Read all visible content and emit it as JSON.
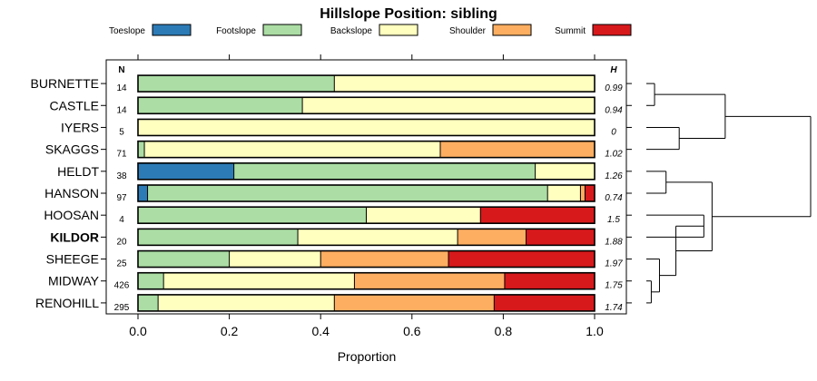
{
  "chart_data": {
    "type": "bar",
    "stacked": true,
    "orientation": "horizontal",
    "title": "Hillslope Position: sibling",
    "xlabel": "Proportion",
    "ylabel": "",
    "xlim": [
      0,
      1
    ],
    "x_ticks": [
      "0.0",
      "0.2",
      "0.4",
      "0.6",
      "0.8",
      "1.0"
    ],
    "legend_position": "top",
    "n_header": "N",
    "h_header": "H",
    "series": [
      {
        "name": "Toeslope",
        "color": "#2C7BB6"
      },
      {
        "name": "Footslope",
        "color": "#ABDDA4"
      },
      {
        "name": "Backslope",
        "color": "#FFFFBF"
      },
      {
        "name": "Shoulder",
        "color": "#FDAE61"
      },
      {
        "name": "Summit",
        "color": "#D7191C"
      }
    ],
    "rows": [
      {
        "label": "BURNETTE",
        "bold": false,
        "n": "14",
        "h": "0.99",
        "values": [
          0,
          0.43,
          0.57,
          0,
          0
        ]
      },
      {
        "label": "CASTLE",
        "bold": false,
        "n": "14",
        "h": "0.94",
        "values": [
          0,
          0.36,
          0.64,
          0,
          0
        ]
      },
      {
        "label": "IYERS",
        "bold": false,
        "n": "5",
        "h": "0",
        "values": [
          0,
          0,
          1.0,
          0,
          0
        ]
      },
      {
        "label": "SKAGGS",
        "bold": false,
        "n": "71",
        "h": "1.02",
        "values": [
          0,
          0.014,
          0.648,
          0.338,
          0
        ]
      },
      {
        "label": "HELDT",
        "bold": false,
        "n": "38",
        "h": "1.26",
        "values": [
          0.21,
          0.66,
          0.13,
          0,
          0
        ]
      },
      {
        "label": "HANSON",
        "bold": false,
        "n": "97",
        "h": "0.74",
        "values": [
          0.021,
          0.876,
          0.072,
          0.01,
          0.021
        ]
      },
      {
        "label": "HOOSAN",
        "bold": false,
        "n": "4",
        "h": "1.5",
        "values": [
          0,
          0.5,
          0.25,
          0,
          0.25
        ]
      },
      {
        "label": "KILDOR",
        "bold": true,
        "n": "20",
        "h": "1.88",
        "values": [
          0,
          0.35,
          0.35,
          0.15,
          0.15
        ]
      },
      {
        "label": "SHEEGE",
        "bold": false,
        "n": "25",
        "h": "1.97",
        "values": [
          0,
          0.2,
          0.2,
          0.28,
          0.32
        ]
      },
      {
        "label": "MIDWAY",
        "bold": false,
        "n": "426",
        "h": "1.75",
        "values": [
          0,
          0.056,
          0.418,
          0.329,
          0.197
        ]
      },
      {
        "label": "RENOHILL",
        "bold": false,
        "n": "295",
        "h": "1.74",
        "values": [
          0,
          0.044,
          0.386,
          0.35,
          0.22
        ]
      }
    ],
    "dendrogram_merges": [
      [
        [
          0,
          1
        ],
        0.05
      ],
      [
        [
          2,
          3
        ],
        0.2
      ],
      [
        [
          4,
          5
        ],
        0.12
      ],
      [
        [
          6,
          7
        ],
        0.35
      ],
      [
        [
          9,
          10
        ],
        0.03
      ],
      [
        [
          8,
          9,
          10
        ],
        0.08
      ],
      [
        [
          6,
          7,
          8,
          9,
          10
        ],
        0.18
      ],
      [
        [
          4,
          5,
          6,
          7,
          8,
          9,
          10
        ],
        0.4
      ],
      [
        [
          0,
          1,
          2,
          3
        ],
        0.48
      ],
      [
        [
          0,
          1,
          2,
          3,
          4,
          5,
          6,
          7,
          8,
          9,
          10
        ],
        1.0
      ]
    ]
  }
}
